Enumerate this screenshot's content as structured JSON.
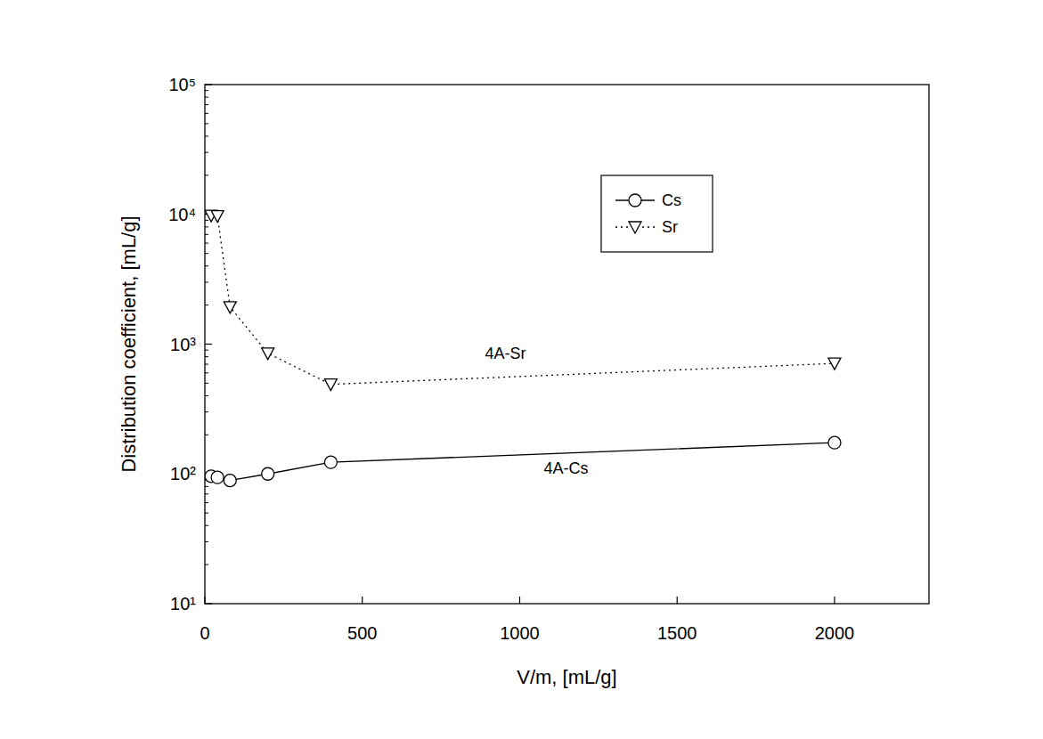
{
  "chart_data": {
    "type": "line",
    "xlabel": "V/m, [mL/g]",
    "ylabel": "Distribution coefficient, [mL/g]",
    "log": "y",
    "xlim": [
      0,
      2300
    ],
    "xticks": [
      0,
      500,
      1000,
      1500,
      2000
    ],
    "ylim": [
      10,
      100000
    ],
    "yticks": [
      {
        "value": 10,
        "label": "10¹"
      },
      {
        "value": 100,
        "label": "10²"
      },
      {
        "value": 1000,
        "label": "10³"
      },
      {
        "value": 10000,
        "label": "10⁴"
      },
      {
        "value": 100000,
        "label": "10⁵"
      }
    ],
    "grid": false,
    "legend": "upper right",
    "series": [
      {
        "name": "Cs",
        "color": "#000000",
        "marker": "circle",
        "line_style": "solid",
        "x": [
          20,
          40,
          80,
          200,
          400,
          2000
        ],
        "values": [
          96,
          94,
          89,
          100,
          123,
          174
        ]
      },
      {
        "name": "Sr",
        "color": "#000000",
        "marker": "triangle-down",
        "line_style": "dotted",
        "x": [
          20,
          40,
          80,
          200,
          400,
          2000
        ],
        "values": [
          9800,
          9700,
          1930,
          850,
          490,
          710
        ]
      }
    ],
    "annotations": [
      {
        "text": "4A-Sr",
        "x": 955,
        "y": 861
      },
      {
        "text": "4A-Cs",
        "x": 1147,
        "y": 112
      }
    ]
  }
}
